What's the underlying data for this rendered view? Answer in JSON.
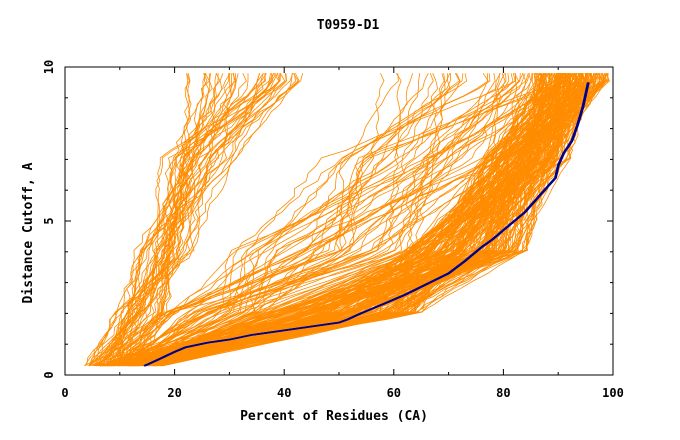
{
  "chart_data": {
    "type": "line",
    "title": "T0959-D1",
    "xlabel": "Percent of Residues (CA)",
    "ylabel": "Distance Cutoff, A",
    "xlim": [
      0,
      100
    ],
    "ylim": [
      0,
      10
    ],
    "x_ticks": [
      "0",
      "20",
      "40",
      "60",
      "80",
      "100"
    ],
    "y_ticks": [
      "0",
      "5",
      "10"
    ],
    "grid": false,
    "colors": {
      "models": "#ff8c00",
      "highlight": "#00008b"
    },
    "series": [
      {
        "x": [
          14.5,
          17,
          20,
          22,
          26,
          30,
          34,
          38,
          42,
          46,
          50,
          51.5,
          54,
          58,
          62,
          66,
          70,
          73,
          76,
          78,
          80,
          82,
          84,
          86,
          88,
          89.5,
          90,
          91,
          92.5,
          93.5,
          94.5,
          95.5
        ],
        "y": [
          0.3,
          0.5,
          0.75,
          0.9,
          1.05,
          1.15,
          1.3,
          1.4,
          1.5,
          1.6,
          1.7,
          1.8,
          2.0,
          2.3,
          2.6,
          2.95,
          3.3,
          3.7,
          4.15,
          4.4,
          4.7,
          5.0,
          5.3,
          5.7,
          6.1,
          6.4,
          6.8,
          7.2,
          7.6,
          8.1,
          8.7,
          9.5
        ]
      }
    ]
  }
}
